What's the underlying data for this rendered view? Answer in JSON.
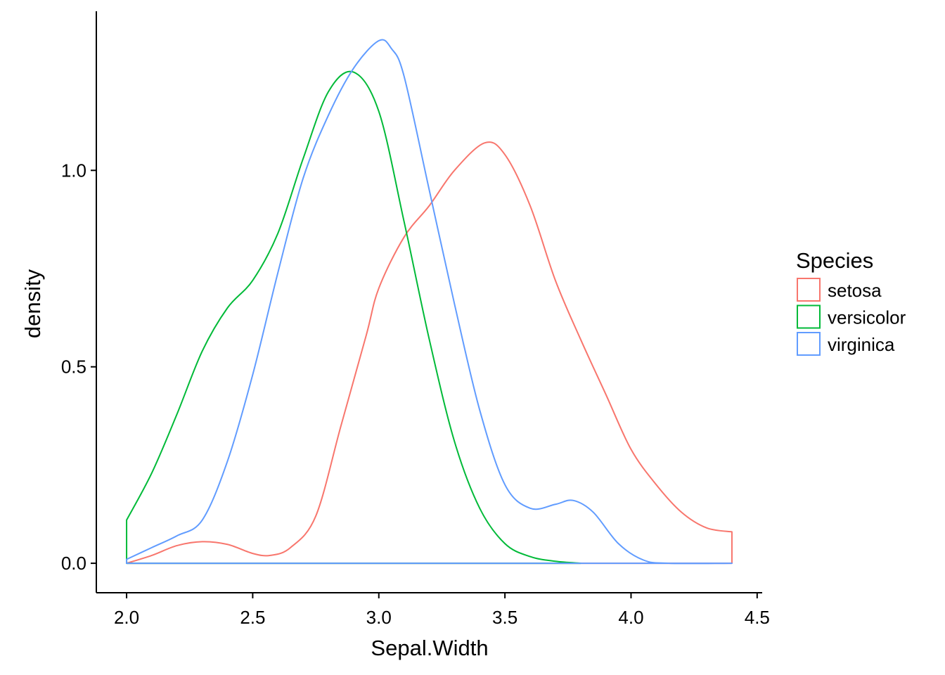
{
  "chart_data": {
    "type": "line",
    "title": "",
    "xlabel": "Sepal.Width",
    "ylabel": "density",
    "xlim": [
      1.88,
      4.52
    ],
    "ylim": [
      -0.075,
      1.405
    ],
    "x_ticks": [
      2.0,
      2.5,
      3.0,
      3.5,
      4.0,
      4.5
    ],
    "y_ticks": [
      0.0,
      0.5,
      1.0
    ],
    "grid": false,
    "legend": {
      "title": "Species",
      "placement": "right",
      "entries": [
        "setosa",
        "versicolor",
        "virginica"
      ]
    },
    "series": [
      {
        "name": "setosa",
        "color": "#F8766D",
        "x": [
          2.0,
          2.1,
          2.2,
          2.3,
          2.4,
          2.5,
          2.57,
          2.65,
          2.75,
          2.85,
          2.95,
          3.0,
          3.1,
          3.2,
          3.3,
          3.42,
          3.5,
          3.6,
          3.7,
          3.8,
          3.9,
          4.0,
          4.1,
          4.2,
          4.3,
          4.4
        ],
        "y": [
          0.0,
          0.02,
          0.045,
          0.055,
          0.048,
          0.025,
          0.02,
          0.04,
          0.12,
          0.35,
          0.58,
          0.7,
          0.83,
          0.91,
          1.0,
          1.07,
          1.04,
          0.91,
          0.72,
          0.57,
          0.43,
          0.29,
          0.2,
          0.13,
          0.09,
          0.08
        ]
      },
      {
        "name": "versicolor",
        "color": "#00BA38",
        "x": [
          2.0,
          2.1,
          2.2,
          2.3,
          2.4,
          2.5,
          2.6,
          2.7,
          2.8,
          2.9,
          3.0,
          3.1,
          3.2,
          3.3,
          3.4,
          3.5,
          3.6,
          3.7,
          3.8
        ],
        "y": [
          0.11,
          0.23,
          0.38,
          0.54,
          0.65,
          0.72,
          0.84,
          1.03,
          1.2,
          1.25,
          1.15,
          0.87,
          0.57,
          0.31,
          0.14,
          0.05,
          0.017,
          0.005,
          0.0
        ]
      },
      {
        "name": "virginica",
        "color": "#619CFF",
        "x": [
          2.0,
          2.1,
          2.2,
          2.3,
          2.4,
          2.5,
          2.6,
          2.7,
          2.8,
          2.9,
          3.0,
          3.05,
          3.1,
          3.2,
          3.3,
          3.4,
          3.5,
          3.6,
          3.7,
          3.77,
          3.85,
          3.95,
          4.05,
          4.15,
          4.4
        ],
        "y": [
          0.01,
          0.04,
          0.07,
          0.11,
          0.26,
          0.48,
          0.74,
          0.98,
          1.14,
          1.26,
          1.33,
          1.31,
          1.24,
          0.95,
          0.66,
          0.39,
          0.2,
          0.14,
          0.15,
          0.16,
          0.13,
          0.05,
          0.008,
          0.0,
          0.0
        ]
      }
    ]
  }
}
